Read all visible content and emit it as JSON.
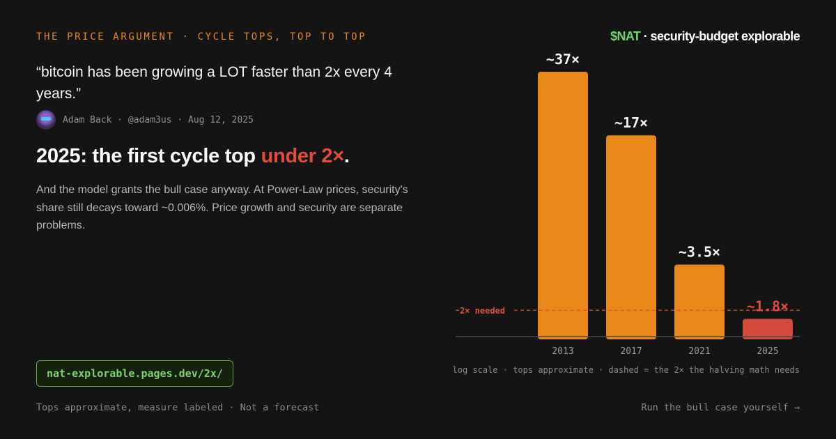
{
  "eyebrow": "THE PRICE ARGUMENT · CYCLE TOPS, TOP TO TOP",
  "quote": "“bitcoin has been growing a LOT faster than 2x every 4 years.”",
  "byline": "Adam Back · @adam3us · Aug 12, 2025",
  "headline": {
    "lead": "2025: the first cycle top ",
    "accent": "under 2×",
    "trail": "."
  },
  "body": "And the model grants the bull case anyway. At Power-Law prices, security's share still decays toward ~0.006%. Price growth and security are separate problems.",
  "url": "nat-explorable.pages.dev/2x/",
  "footer_left": "Tops approximate, measure labeled · Not a forecast",
  "footer_right": "Run the bull case yourself →",
  "brand": {
    "nat": "$NAT",
    "rest": " · security-budget explorable"
  },
  "caption": "log scale · tops approximate · dashed = the 2× the halving math needs",
  "colors": {
    "bar": "#e8891a",
    "bar_low": "#d14a3a",
    "accent_red": "#e04e3a",
    "accent_orange": "#e8891a",
    "brand_green": "#6bd46a"
  },
  "chart_data": {
    "type": "bar",
    "scale": "log",
    "categories": [
      "2013",
      "2017",
      "2021",
      "2025"
    ],
    "values": [
      37,
      17,
      3.5,
      1.8
    ],
    "value_labels": [
      "~37×",
      "~17×",
      "~3.5×",
      "~1.8×"
    ],
    "threshold": {
      "value": 2,
      "label": "2× needed"
    },
    "title": "",
    "xlabel": "",
    "ylabel": ""
  }
}
